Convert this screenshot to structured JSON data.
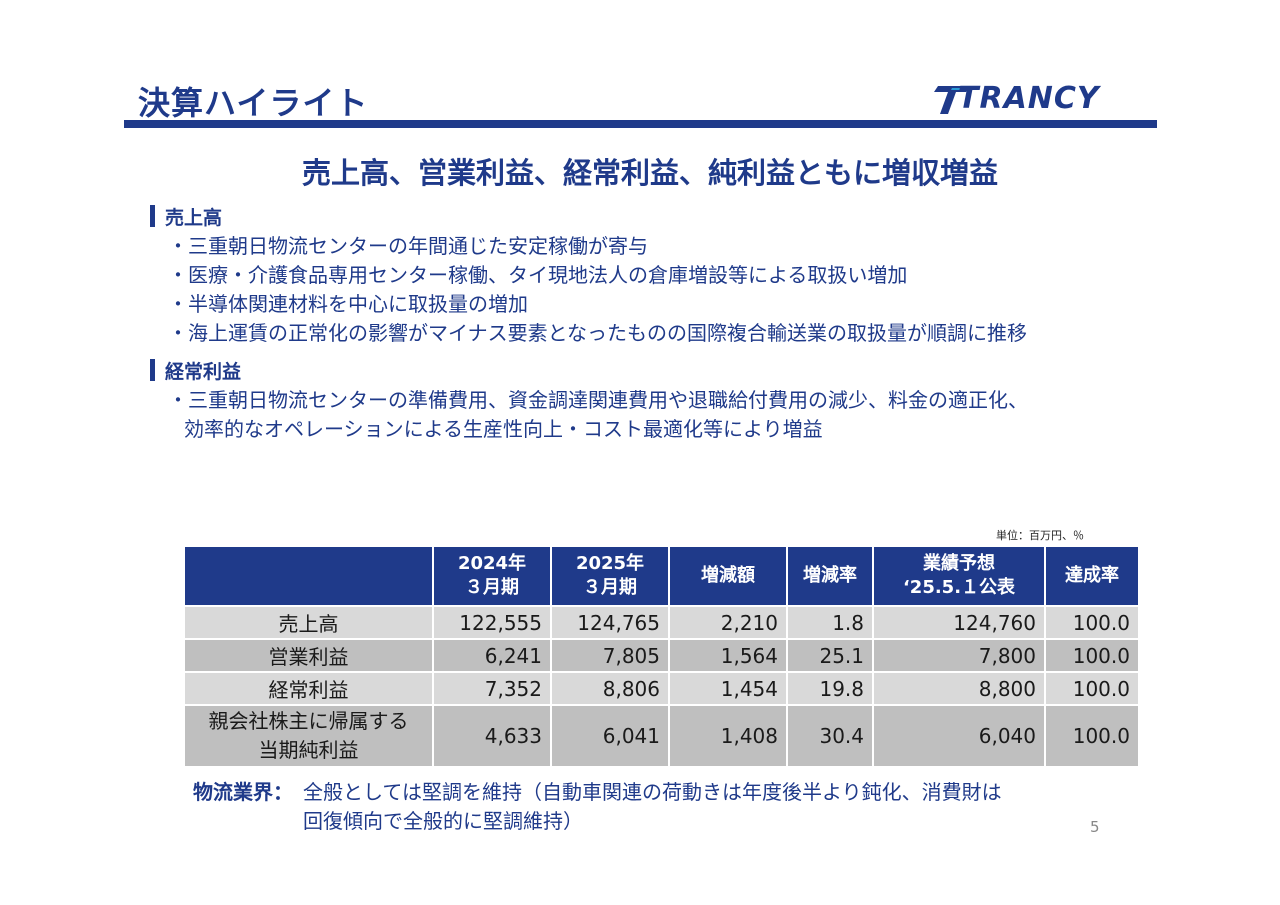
{
  "header": {
    "title": "決算ハイライト",
    "logo_text": "TRANCY"
  },
  "headline": "売上高、営業利益、経常利益、純利益ともに増収増益",
  "sections": [
    {
      "heading": "売上高",
      "bullets": [
        "・三重朝日物流センターの年間通じた安定稼働が寄与",
        "・医療・介護食品専用センター稼働、タイ現地法人の倉庫増設等による取扱い増加",
        "・半導体関連材料を中心に取扱量の増加",
        "・海上運賃の正常化の影響がマイナス要素となったものの国際複合輸送業の取扱量が順調に推移"
      ]
    },
    {
      "heading": "経常利益",
      "bullets": [
        "・三重朝日物流センターの準備費用、資金調達関連費用や退職給付費用の減少、料金の適正化、"
      ],
      "continuation": "効率的なオペレーションによる生産性向上・コスト最適化等により増益"
    }
  ],
  "table": {
    "unit": "単位：百万円、％",
    "headers": [
      {
        "line1": "",
        "line2": ""
      },
      {
        "line1": "2024年",
        "line2": "３月期"
      },
      {
        "line1": "2025年",
        "line2": "３月期"
      },
      {
        "line1": "増減額",
        "line2": ""
      },
      {
        "line1": "増減率",
        "line2": ""
      },
      {
        "line1": "業績予想",
        "line2": "‘25.5.１公表"
      },
      {
        "line1": "達成率",
        "line2": ""
      }
    ],
    "rows": [
      {
        "label1": "売上高",
        "label2": "",
        "values": [
          "122,555",
          "124,765",
          "2,210",
          "1.8",
          "124,760",
          "100.0"
        ]
      },
      {
        "label1": "営業利益",
        "label2": "",
        "values": [
          "6,241",
          "7,805",
          "1,564",
          "25.1",
          "7,800",
          "100.0"
        ]
      },
      {
        "label1": "経常利益",
        "label2": "",
        "values": [
          "7,352",
          "8,806",
          "1,454",
          "19.8",
          "8,800",
          "100.0"
        ]
      },
      {
        "label1": "親会社株主に帰属する",
        "label2": "当期純利益",
        "values": [
          "4,633",
          "6,041",
          "1,408",
          "30.4",
          "6,040",
          "100.0"
        ]
      }
    ]
  },
  "footnote": {
    "label": "物流業界：",
    "line1": "全般としては堅調を維持（自動車関連の荷動きは年度後半より鈍化、消費財は",
    "line2": "回復傾向で全般的に堅調維持）"
  },
  "page_number": "5",
  "colors": {
    "brand_navy": "#1f3a8a",
    "row_light": "#d9d9d9",
    "row_dark": "#bfbfbf"
  }
}
